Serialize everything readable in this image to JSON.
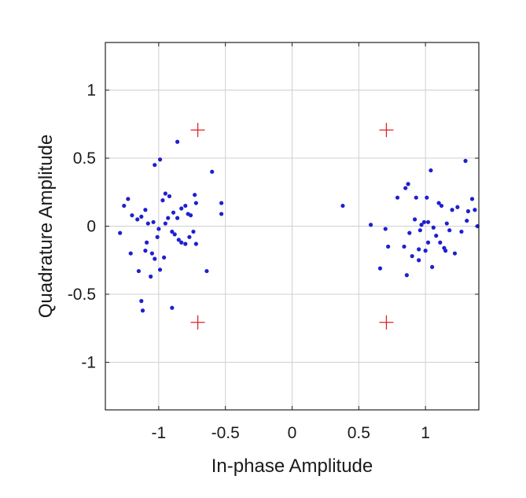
{
  "chart_data": {
    "type": "scatter",
    "xlabel": "In-phase Amplitude",
    "ylabel": "Quadrature Amplitude",
    "xlim": [
      -1.4,
      1.4
    ],
    "ylim": [
      -1.35,
      1.35
    ],
    "xticks": [
      -1,
      -0.5,
      0,
      0.5,
      1
    ],
    "xtick_labels": [
      "-1",
      "-0.5",
      "0",
      "0.5",
      "1"
    ],
    "yticks": [
      1,
      0.5,
      0,
      -0.5,
      -1
    ],
    "ytick_labels": [
      "1",
      "0.5",
      "0",
      "-0.5",
      "-1"
    ],
    "grid": true,
    "colors": {
      "received": "#1f1fd0",
      "reference": "#e0202a"
    },
    "series": [
      {
        "marker": "dot",
        "color": "#1f1fd0",
        "points": [
          [
            -0.99,
            0.49
          ],
          [
            -1.03,
            0.45
          ],
          [
            -0.86,
            0.62
          ],
          [
            -0.6,
            0.4
          ],
          [
            -1.26,
            0.15
          ],
          [
            -1.23,
            0.2
          ],
          [
            -1.2,
            0.08
          ],
          [
            -1.16,
            0.05
          ],
          [
            -1.13,
            0.07
          ],
          [
            -1.1,
            0.12
          ],
          [
            -1.08,
            0.02
          ],
          [
            -1.04,
            0.03
          ],
          [
            -1.0,
            -0.02
          ],
          [
            -0.97,
            0.19
          ],
          [
            -0.95,
            0.24
          ],
          [
            -0.92,
            0.22
          ],
          [
            -0.89,
            0.1
          ],
          [
            -0.86,
            0.06
          ],
          [
            -0.83,
            0.13
          ],
          [
            -0.8,
            0.15
          ],
          [
            -0.78,
            0.09
          ],
          [
            -0.76,
            0.08
          ],
          [
            -0.73,
            0.23
          ],
          [
            -0.72,
            0.17
          ],
          [
            -0.95,
            0.02
          ],
          [
            -0.93,
            0.06
          ],
          [
            -0.9,
            -0.04
          ],
          [
            -0.88,
            -0.06
          ],
          [
            -0.85,
            -0.1
          ],
          [
            -0.83,
            -0.12
          ],
          [
            -0.8,
            -0.13
          ],
          [
            -0.77,
            -0.08
          ],
          [
            -0.74,
            -0.04
          ],
          [
            -0.72,
            -0.13
          ],
          [
            -0.53,
            0.17
          ],
          [
            -0.53,
            0.09
          ],
          [
            -1.29,
            -0.05
          ],
          [
            -1.21,
            -0.2
          ],
          [
            -1.15,
            -0.33
          ],
          [
            -1.1,
            -0.18
          ],
          [
            -1.05,
            -0.2
          ],
          [
            -1.03,
            -0.24
          ],
          [
            -1.01,
            -0.08
          ],
          [
            -0.99,
            -0.32
          ],
          [
            -0.96,
            -0.23
          ],
          [
            -1.06,
            -0.37
          ],
          [
            -1.13,
            -0.55
          ],
          [
            -1.12,
            -0.62
          ],
          [
            -0.9,
            -0.6
          ],
          [
            -0.64,
            -0.33
          ],
          [
            -1.09,
            -0.12
          ],
          [
            0.38,
            0.15
          ],
          [
            0.59,
            0.01
          ],
          [
            0.66,
            -0.31
          ],
          [
            0.7,
            -0.02
          ],
          [
            0.72,
            -0.15
          ],
          [
            0.79,
            0.21
          ],
          [
            0.84,
            -0.15
          ],
          [
            0.85,
            0.28
          ],
          [
            0.87,
            0.31
          ],
          [
            0.86,
            -0.36
          ],
          [
            0.88,
            -0.05
          ],
          [
            0.9,
            -0.22
          ],
          [
            0.93,
            0.21
          ],
          [
            0.95,
            -0.17
          ],
          [
            0.96,
            -0.03
          ],
          [
            0.97,
            0.01
          ],
          [
            0.99,
            0.03
          ],
          [
            1.01,
            0.21
          ],
          [
            1.02,
            0.03
          ],
          [
            1.02,
            -0.12
          ],
          [
            1.04,
            0.41
          ],
          [
            1.05,
            -0.3
          ],
          [
            1.06,
            -0.01
          ],
          [
            1.08,
            -0.07
          ],
          [
            1.1,
            0.17
          ],
          [
            1.12,
            0.15
          ],
          [
            1.14,
            -0.16
          ],
          [
            1.16,
            0.02
          ],
          [
            1.18,
            -0.03
          ],
          [
            1.2,
            0.12
          ],
          [
            1.22,
            -0.2
          ],
          [
            1.24,
            0.14
          ],
          [
            1.27,
            -0.04
          ],
          [
            1.3,
            0.48
          ],
          [
            1.31,
            0.04
          ],
          [
            1.32,
            0.11
          ],
          [
            1.35,
            0.2
          ],
          [
            1.37,
            0.12
          ],
          [
            1.39,
            0.0
          ],
          [
            0.95,
            -0.25
          ],
          [
            1.0,
            -0.18
          ],
          [
            1.11,
            -0.12
          ],
          [
            0.92,
            0.05
          ],
          [
            1.15,
            -0.18
          ]
        ]
      },
      {
        "marker": "plus",
        "color": "#e0202a",
        "points": [
          [
            -0.707,
            0.707
          ],
          [
            -0.707,
            -0.707
          ],
          [
            0.707,
            0.707
          ],
          [
            0.707,
            -0.707
          ]
        ]
      }
    ]
  }
}
